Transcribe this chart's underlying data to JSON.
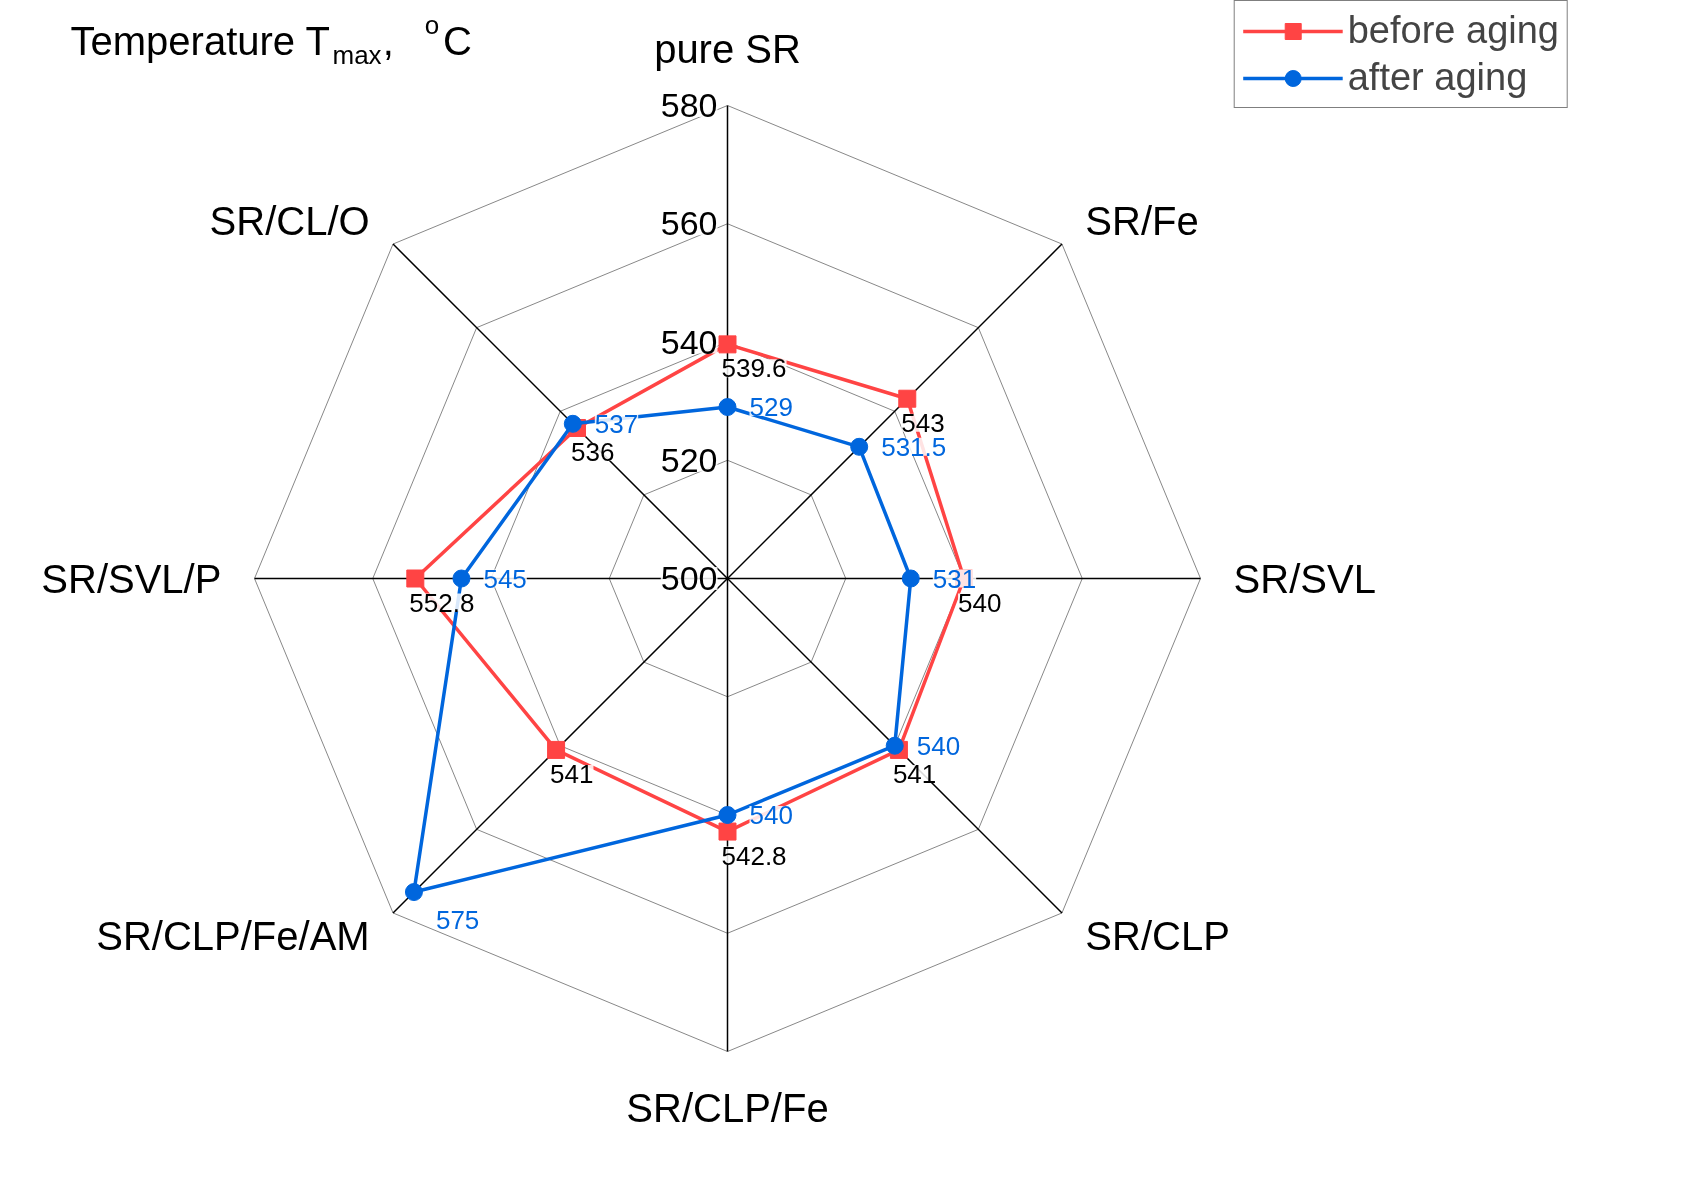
{
  "chart_data": {
    "type": "radar",
    "title": "Temperature T$_{max}$, $^{o}$C",
    "categories": [
      "pure SR",
      "SR/Fe",
      "SR/SVL",
      "SR/CLP",
      "SR/CLP/Fe",
      "SR/CLP/Fe/AM",
      "SR/SVL/P",
      "SR/CL/O"
    ],
    "series": [
      {
        "name": "before aging",
        "color": "#ff4444",
        "marker": "square",
        "values": [
          539.6,
          543,
          540,
          541,
          542.8,
          541,
          552.8,
          536
        ]
      },
      {
        "name": "after aging",
        "color": "#0066dd",
        "marker": "circle",
        "values": [
          529,
          531.5,
          531,
          540,
          540,
          575,
          545,
          537
        ]
      }
    ],
    "ylim": [
      500,
      580
    ],
    "yticks": [
      500,
      520,
      540,
      560,
      580
    ],
    "data_labels": true,
    "legend": "top right",
    "grid": true
  }
}
